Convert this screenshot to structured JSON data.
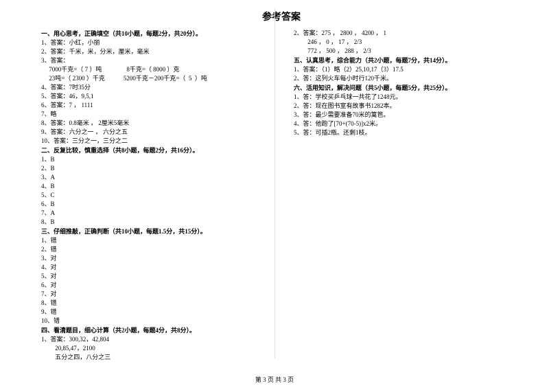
{
  "title": "参考答案",
  "title_fontsize": 14,
  "body_fontsize": 9,
  "line_height": 13,
  "footer": "第 3 页 共 3 页",
  "sections": [
    {
      "head": "一、用心思考，正确填空（共10小题，每题2分，共20分）。",
      "lines": [
        "1、答案：小红，小丽",
        "2、答案：千米，米，分米，厘米，毫米",
        "3、答案：",
        "     7000千克=（ 7 ）吨                8千克=（ 8000 ）克",
        "     23吨=（ 2300 ）千克            5200千克－200千克=（  5  ）吨",
        "4、答案：7时35分",
        "5、答案：46，9,5,1",
        "6、答案：7 ， 1111",
        "7、略",
        "8、答案：0.8毫米 ， 2厘米5毫米",
        "9、答案：六分之一 ， 六分之五",
        "10、答案：三分之一，三分之二"
      ]
    },
    {
      "head": "二、反复比较，慎重选择（共8小题，每题2分，共16分）。",
      "lines": [
        "1、B",
        "2、B",
        "3、A",
        "4、B",
        "5、C",
        "6、B",
        "7、A",
        "8、B"
      ]
    },
    {
      "head": "三、仔细推敲，正确判断（共10小题，每题1.5分，共15分）。",
      "lines": [
        "1、错",
        "2、错",
        "3、对",
        "4、对",
        "5、对",
        "6、对",
        "7、对",
        "8、错",
        "9、错",
        "10、错"
      ]
    },
    {
      "head": "四、看清题目，细心计算（共2小题，每题4分，共8分）。",
      "lines": [
        "1、答案：300,32，42,804",
        "         20,85,47，2100",
        "         五分之四，八分之三",
        "2、答案：275 ， 2800 ， 4200 ， 1",
        "         246 ， 0 ， 17 ， 2/3",
        "         772 ， 500 ， 288 ， 2/3"
      ]
    },
    {
      "head": "五、认真思考，综合能力（共2小题，每题7分，共14分）。",
      "lines": [
        "1、答案：（1）略（2）25,10,17（3）17.5",
        "2、答：这列火车每小时行120千米。"
      ]
    },
    {
      "head": "六、活用知识，解决问题（共5小题，每题5分，共25分）。",
      "lines": [
        "1、答：学校买乒乓球一共花了1248元。",
        "2、答：现在图书室有故事书1282本。",
        "3、答：最少需要准备70米的篱笆。",
        "4、答：他跑了[70+(70-5)]x2米。",
        "5、答：可插2瓶。还剩1枝。"
      ]
    }
  ]
}
